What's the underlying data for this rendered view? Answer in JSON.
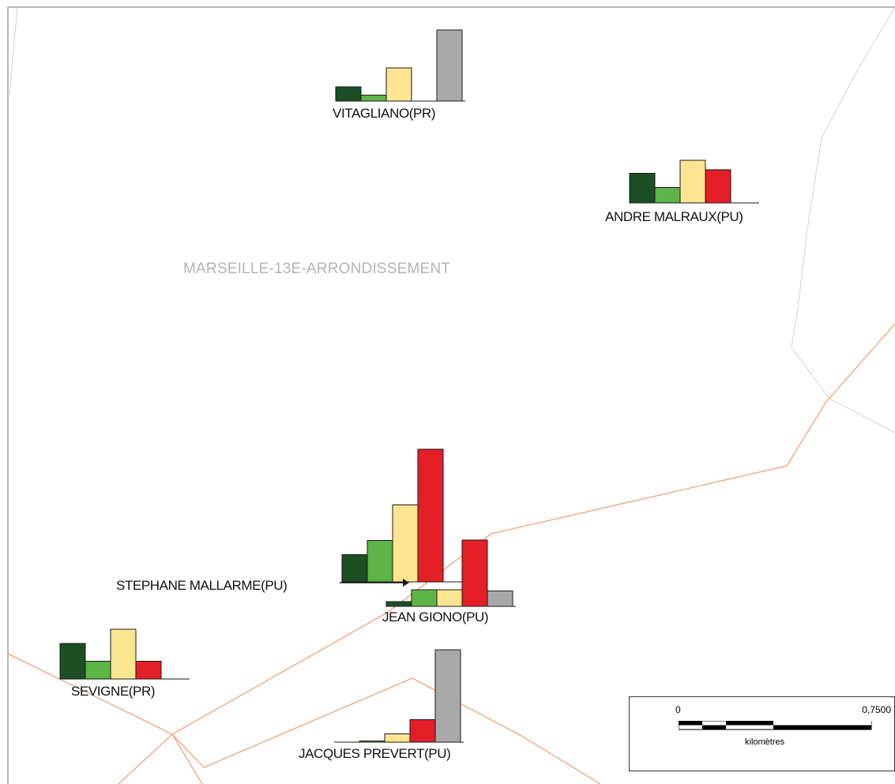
{
  "area_label": "MARSEILLE-13E-ARRONDISSEMENT",
  "colors": {
    "class1": "#1d4f25",
    "class2": "#5cb546",
    "class3": "#fde591",
    "class4": "#e41e26",
    "class5": "#a9a9a9",
    "boundary_orange": "#f4a178",
    "boundary_grey": "#d2d2d2",
    "frame": "#8c8c8c"
  },
  "schools": [
    {
      "name": "VITAGLIANO(PR)",
      "values": [
        12,
        5,
        28,
        null,
        60
      ]
    },
    {
      "name": "ANDRE MALRAUX(PU)",
      "values": [
        25,
        13,
        36,
        28,
        null
      ]
    },
    {
      "name": "STEPHANE MALLARME(PU)",
      "values": [
        23,
        35,
        65,
        112,
        null
      ]
    },
    {
      "name": "JEAN GIONO(PU)",
      "values": [
        4,
        14,
        14,
        56,
        13
      ]
    },
    {
      "name": "SEVIGNE(PR)",
      "values": [
        30,
        15,
        42,
        15,
        null
      ]
    },
    {
      "name": "JACQUES PREVERT(PU)",
      "values": [
        null,
        1,
        7,
        19,
        78
      ]
    }
  ],
  "scale": {
    "zero": "0",
    "max": "0,7500",
    "unit": "kilomètres"
  }
}
